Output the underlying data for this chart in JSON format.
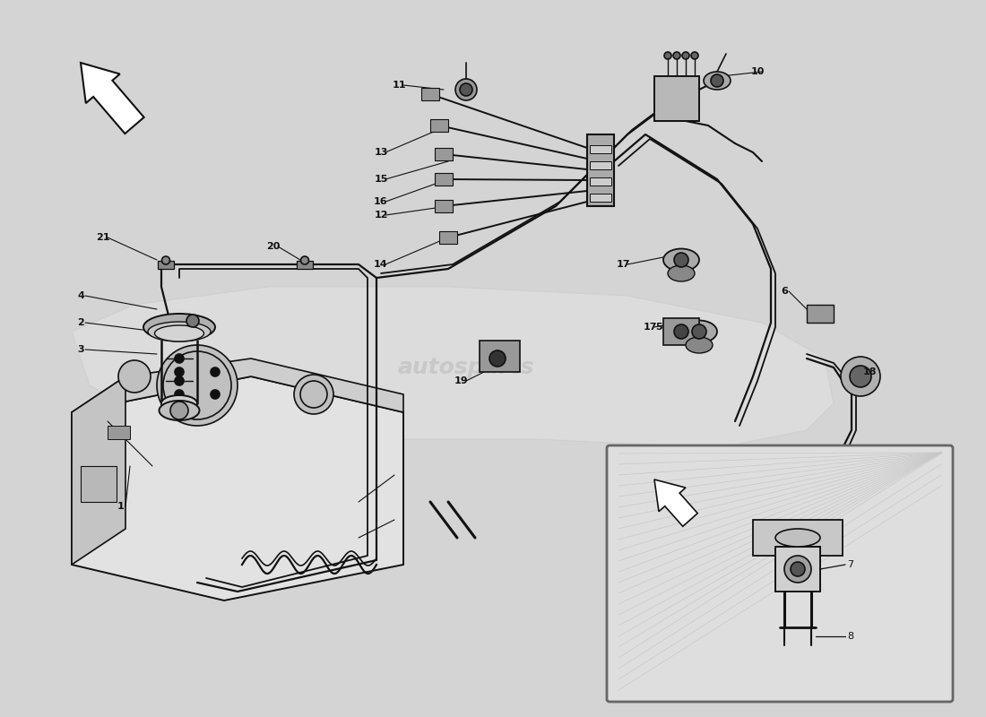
{
  "bg_color": "#d4d4d4",
  "line_color": "#111111",
  "watermark": "autosparts"
}
